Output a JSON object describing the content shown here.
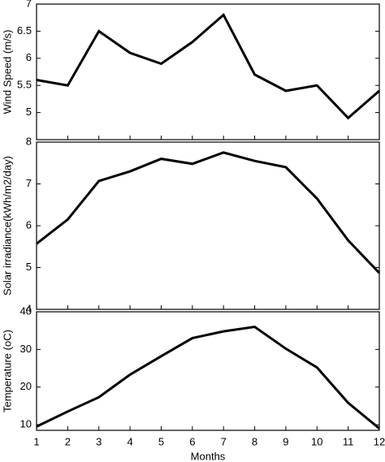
{
  "chart_data": [
    {
      "type": "line",
      "ylabel": "Wind Speed (m/s)",
      "color": "#000000",
      "x": [
        1,
        2,
        3,
        4,
        5,
        6,
        7,
        8,
        9,
        10,
        11,
        12
      ],
      "values": [
        5.6,
        5.5,
        6.5,
        6.1,
        5.9,
        6.3,
        6.8,
        5.7,
        5.4,
        5.5,
        4.9,
        5.4
      ],
      "xlim": [
        1,
        12
      ],
      "ylim": [
        4.5,
        7
      ],
      "yticks": [
        5,
        5.5,
        6,
        6.5,
        7
      ]
    },
    {
      "type": "line",
      "ylabel": "Solar irradiance(kWh/m2/day)",
      "color": "#000000",
      "x": [
        1,
        2,
        3,
        4,
        5,
        6,
        7,
        8,
        9,
        10,
        11,
        12
      ],
      "values": [
        5.57,
        6.15,
        7.07,
        7.3,
        7.6,
        7.48,
        7.75,
        7.55,
        7.4,
        6.65,
        5.65,
        4.87
      ],
      "xlim": [
        1,
        12
      ],
      "ylim": [
        4,
        8
      ],
      "yticks": [
        4,
        5,
        6,
        7,
        8
      ]
    },
    {
      "type": "line",
      "ylabel": "Temperature (oC)",
      "xlabel": "Months",
      "color": "#000000",
      "x": [
        1,
        2,
        3,
        4,
        5,
        6,
        7,
        8,
        9,
        10,
        11,
        12
      ],
      "values": [
        9.5,
        13.5,
        17.3,
        23.3,
        28.2,
        33,
        34.8,
        36,
        30.2,
        25.2,
        15.8,
        9
      ],
      "xlim": [
        1,
        12
      ],
      "xticks": [
        1,
        2,
        3,
        4,
        5,
        6,
        7,
        8,
        9,
        10,
        11,
        12
      ],
      "ylim": [
        8.5,
        40
      ],
      "yticks": [
        10,
        20,
        30,
        40
      ]
    }
  ]
}
